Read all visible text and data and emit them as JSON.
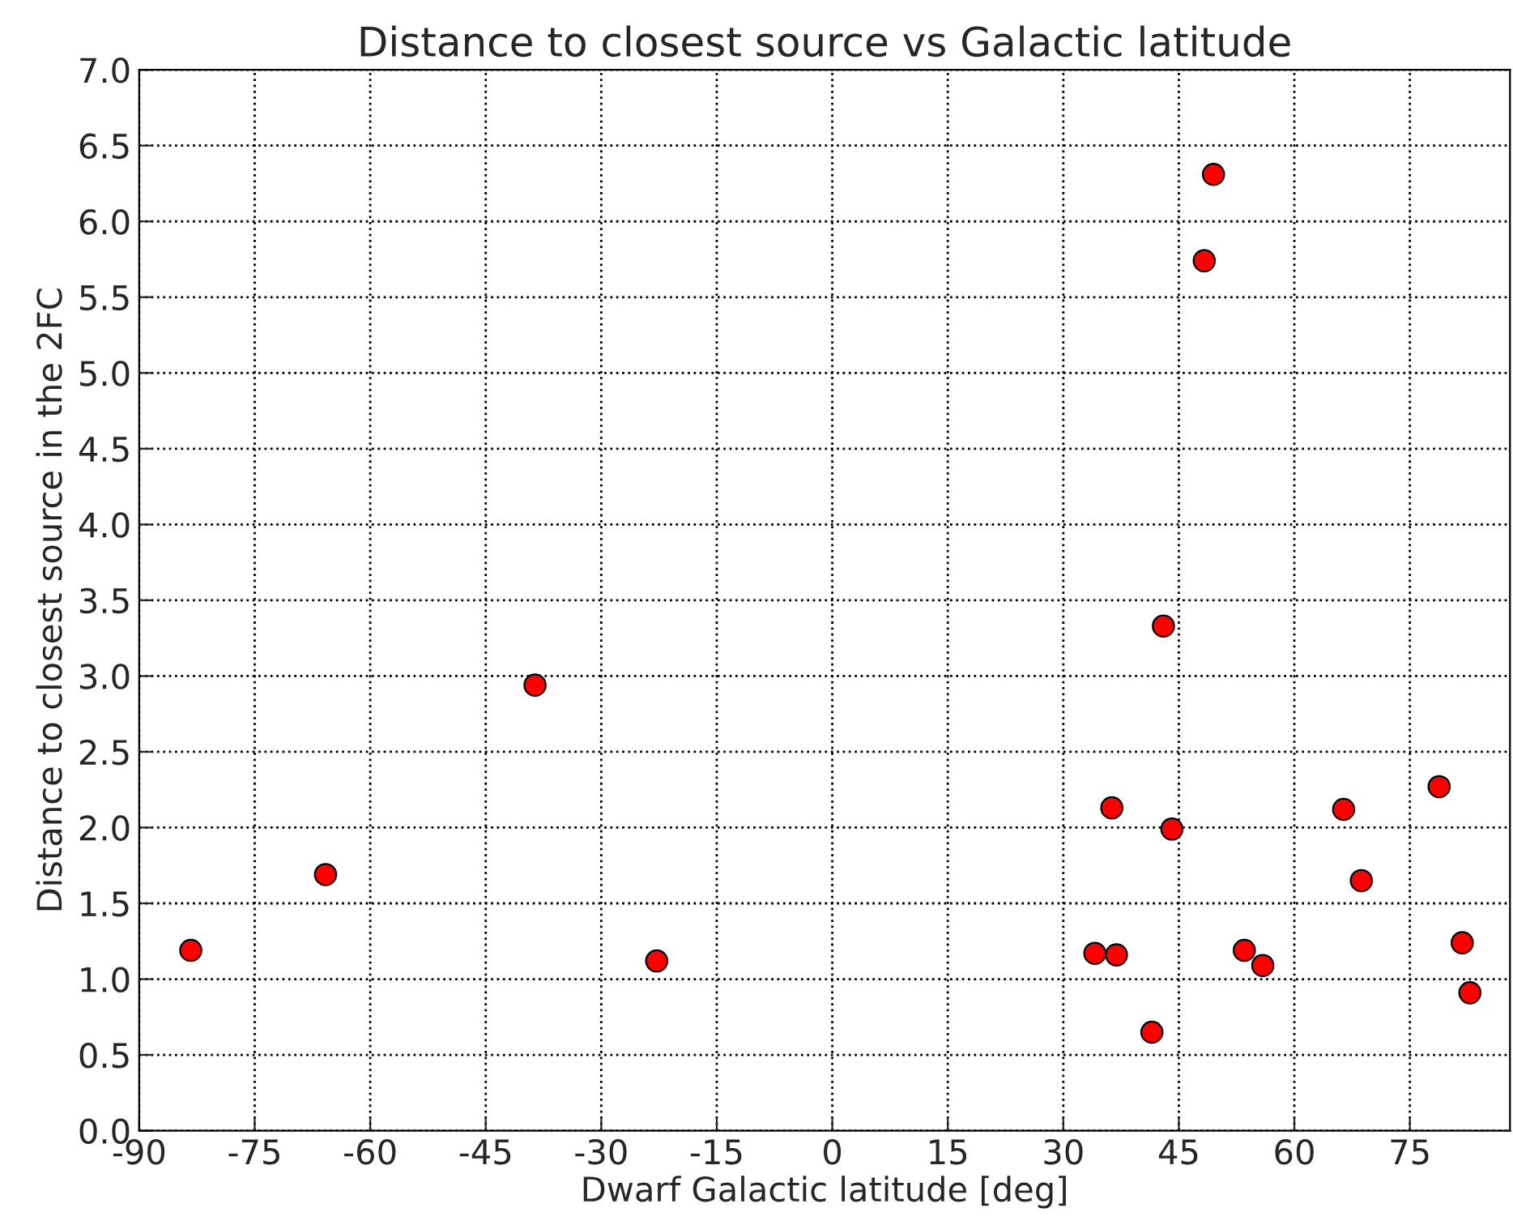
{
  "chart_data": {
    "type": "scatter",
    "title": "Distance to closest source vs Galactic latitude",
    "xlabel": "Dwarf Galactic latitude [deg]",
    "ylabel": "Distance to closest source in the 2FC",
    "x": [
      -83.3,
      -65.8,
      -38.6,
      -22.8,
      34.1,
      36.9,
      36.3,
      41.5,
      43.0,
      44.1,
      48.3,
      49.5,
      53.5,
      55.9,
      66.4,
      68.7,
      78.8,
      81.8,
      82.8
    ],
    "values": [
      1.19,
      1.69,
      2.94,
      1.12,
      1.17,
      1.16,
      2.13,
      0.65,
      3.33,
      1.99,
      5.74,
      6.31,
      1.19,
      1.09,
      2.12,
      1.65,
      2.27,
      1.24,
      0.91
    ],
    "color": "#ff0000",
    "marker": "circle",
    "grid": true,
    "xlim": [
      -90,
      88
    ],
    "xticks": [
      -90,
      -75,
      -60,
      -45,
      -30,
      -15,
      0,
      15,
      30,
      45,
      60,
      75
    ],
    "ylim": [
      0,
      7
    ],
    "yticks": [
      {
        "value": 0,
        "label": "0.0"
      },
      {
        "value": 0.5,
        "label": "0.5"
      },
      {
        "value": 1,
        "label": "1.0"
      },
      {
        "value": 1.5,
        "label": "1.5"
      },
      {
        "value": 2,
        "label": "2.0"
      },
      {
        "value": 2.5,
        "label": "2.5"
      },
      {
        "value": 3,
        "label": "3.0"
      },
      {
        "value": 3.5,
        "label": "3.5"
      },
      {
        "value": 4,
        "label": "4.0"
      },
      {
        "value": 4.5,
        "label": "4.5"
      },
      {
        "value": 5,
        "label": "5.0"
      },
      {
        "value": 5.5,
        "label": "5.5"
      },
      {
        "value": 6,
        "label": "6.0"
      },
      {
        "value": 6.5,
        "label": "6.5"
      },
      {
        "value": 7,
        "label": "7.0"
      }
    ]
  }
}
